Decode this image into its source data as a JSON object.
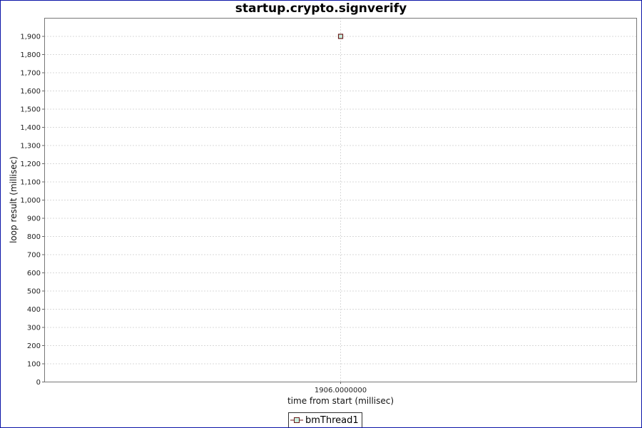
{
  "chart_data": {
    "type": "line",
    "title": "startup.crypto.signverify",
    "xlabel": "time from start (millisec)",
    "ylabel": "loop result (millisec)",
    "x_tick_labels": [
      "1906.0000000"
    ],
    "ylim": [
      0,
      2000
    ],
    "y_ticks": [
      0,
      100,
      200,
      300,
      400,
      500,
      600,
      700,
      800,
      900,
      1000,
      1100,
      1200,
      1300,
      1400,
      1500,
      1600,
      1700,
      1800,
      1900
    ],
    "grid": true,
    "legend_placement": "bottom",
    "series": [
      {
        "name": "bmThread1",
        "x": [
          1906.0
        ],
        "y": [
          1900
        ],
        "marker": "square",
        "stroke_color": "#6b1a1a",
        "fill_color": "#c8f0e0"
      }
    ]
  }
}
